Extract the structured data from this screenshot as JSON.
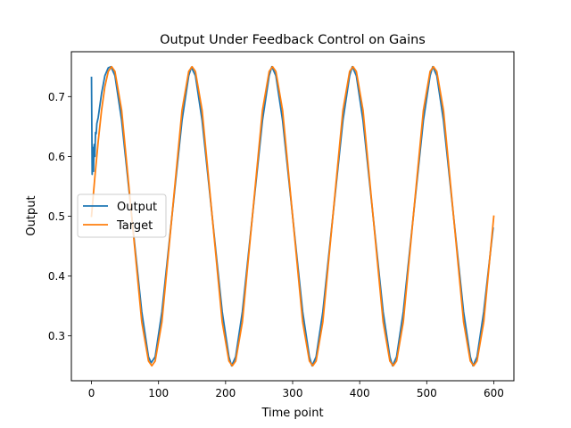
{
  "chart_data": {
    "type": "line",
    "title": "Output Under Feedback Control on Gains",
    "xlabel": "Time point",
    "ylabel": "Output",
    "xlim": [
      -30,
      630
    ],
    "ylim": [
      0.225,
      0.775
    ],
    "xticks": [
      0,
      100,
      200,
      300,
      400,
      500,
      600
    ],
    "yticks": [
      0.3,
      0.4,
      0.5,
      0.6,
      0.7
    ],
    "xtick_labels": [
      "0",
      "100",
      "200",
      "300",
      "400",
      "500",
      "600"
    ],
    "ytick_labels": [
      "0.3",
      "0.4",
      "0.5",
      "0.6",
      "0.7"
    ],
    "grid": false,
    "legend": {
      "position": "center-left",
      "entries": [
        "Output",
        "Target"
      ]
    },
    "series": [
      {
        "name": "Output",
        "color": "#1f77b4",
        "x": [
          0,
          1,
          2,
          3,
          4,
          5,
          6,
          7,
          8,
          10,
          15,
          20,
          25,
          29,
          35,
          45,
          60,
          75,
          85,
          89,
          95,
          105,
          120,
          135,
          145,
          149,
          155,
          165,
          180,
          195,
          205,
          209,
          215,
          225,
          240,
          255,
          265,
          269,
          275,
          285,
          300,
          315,
          325,
          329,
          335,
          345,
          360,
          375,
          385,
          389,
          395,
          405,
          420,
          435,
          445,
          449,
          455,
          465,
          480,
          495,
          505,
          509,
          515,
          525,
          540,
          555,
          565,
          569,
          575,
          585,
          599
        ],
        "y": [
          0.732,
          0.57,
          0.615,
          0.575,
          0.62,
          0.6,
          0.64,
          0.638,
          0.655,
          0.665,
          0.705,
          0.735,
          0.748,
          0.75,
          0.735,
          0.66,
          0.5,
          0.34,
          0.265,
          0.255,
          0.265,
          0.34,
          0.5,
          0.66,
          0.735,
          0.749,
          0.735,
          0.66,
          0.5,
          0.34,
          0.265,
          0.25,
          0.265,
          0.34,
          0.5,
          0.66,
          0.735,
          0.75,
          0.735,
          0.66,
          0.5,
          0.34,
          0.265,
          0.25,
          0.265,
          0.34,
          0.5,
          0.66,
          0.735,
          0.75,
          0.735,
          0.66,
          0.5,
          0.34,
          0.265,
          0.25,
          0.265,
          0.34,
          0.5,
          0.66,
          0.735,
          0.75,
          0.735,
          0.66,
          0.5,
          0.34,
          0.265,
          0.25,
          0.265,
          0.34,
          0.48
        ]
      },
      {
        "name": "Target",
        "color": "#ff7f0e",
        "x": [
          0,
          5,
          10,
          15,
          20,
          25,
          30,
          35,
          45,
          60,
          75,
          85,
          90,
          95,
          105,
          120,
          135,
          145,
          150,
          155,
          165,
          180,
          195,
          205,
          210,
          215,
          225,
          240,
          255,
          265,
          270,
          275,
          285,
          300,
          315,
          325,
          330,
          335,
          345,
          360,
          375,
          385,
          390,
          395,
          405,
          420,
          435,
          445,
          450,
          455,
          465,
          480,
          495,
          505,
          510,
          515,
          525,
          540,
          555,
          565,
          570,
          575,
          585,
          600
        ],
        "y": [
          0.5,
          0.565,
          0.625,
          0.677,
          0.717,
          0.742,
          0.75,
          0.742,
          0.677,
          0.5,
          0.323,
          0.258,
          0.25,
          0.258,
          0.323,
          0.5,
          0.677,
          0.742,
          0.75,
          0.742,
          0.677,
          0.5,
          0.323,
          0.258,
          0.25,
          0.258,
          0.323,
          0.5,
          0.677,
          0.742,
          0.75,
          0.742,
          0.677,
          0.5,
          0.323,
          0.258,
          0.25,
          0.258,
          0.323,
          0.5,
          0.677,
          0.742,
          0.75,
          0.742,
          0.677,
          0.5,
          0.323,
          0.258,
          0.25,
          0.258,
          0.323,
          0.5,
          0.677,
          0.742,
          0.75,
          0.742,
          0.677,
          0.5,
          0.323,
          0.258,
          0.25,
          0.258,
          0.323,
          0.5
        ]
      }
    ]
  }
}
